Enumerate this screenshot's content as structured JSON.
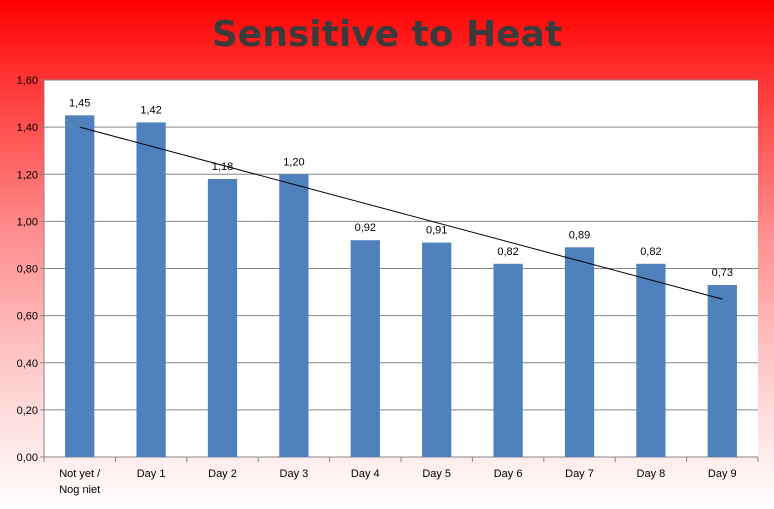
{
  "chart_data": {
    "type": "bar",
    "title": "Sensitive to Heat",
    "categories": [
      "Not yet / Nog niet",
      "Day 1",
      "Day 2",
      "Day 3",
      "Day 4",
      "Day 5",
      "Day 6",
      "Day 7",
      "Day 8",
      "Day 9"
    ],
    "category_lines": [
      [
        "Not yet /",
        "Nog niet"
      ],
      [
        "Day 1"
      ],
      [
        "Day 2"
      ],
      [
        "Day 3"
      ],
      [
        "Day 4"
      ],
      [
        "Day 5"
      ],
      [
        "Day 6"
      ],
      [
        "Day 7"
      ],
      [
        "Day 8"
      ],
      [
        "Day 9"
      ]
    ],
    "values": [
      1.45,
      1.42,
      1.18,
      1.2,
      0.92,
      0.91,
      0.82,
      0.89,
      0.82,
      0.73
    ],
    "data_labels": [
      "1,45",
      "1,42",
      "1,18",
      "1,20",
      "0,92",
      "0,91",
      "0,82",
      "0,89",
      "0,82",
      "0,73"
    ],
    "ylim": [
      0,
      1.6
    ],
    "yticks": [
      0,
      0.2,
      0.4,
      0.6,
      0.8,
      1.0,
      1.2,
      1.4,
      1.6
    ],
    "ytick_labels": [
      "0,00",
      "0,20",
      "0,40",
      "0,60",
      "0,80",
      "1,00",
      "1,20",
      "1,40",
      "1,60"
    ],
    "trendline": {
      "type": "linear",
      "start": 1.4,
      "end": 0.67
    },
    "grid": true,
    "legend": "none",
    "colors": {
      "bar": "#4f81bd",
      "trendline": "#000000",
      "grid": "#868686"
    }
  }
}
